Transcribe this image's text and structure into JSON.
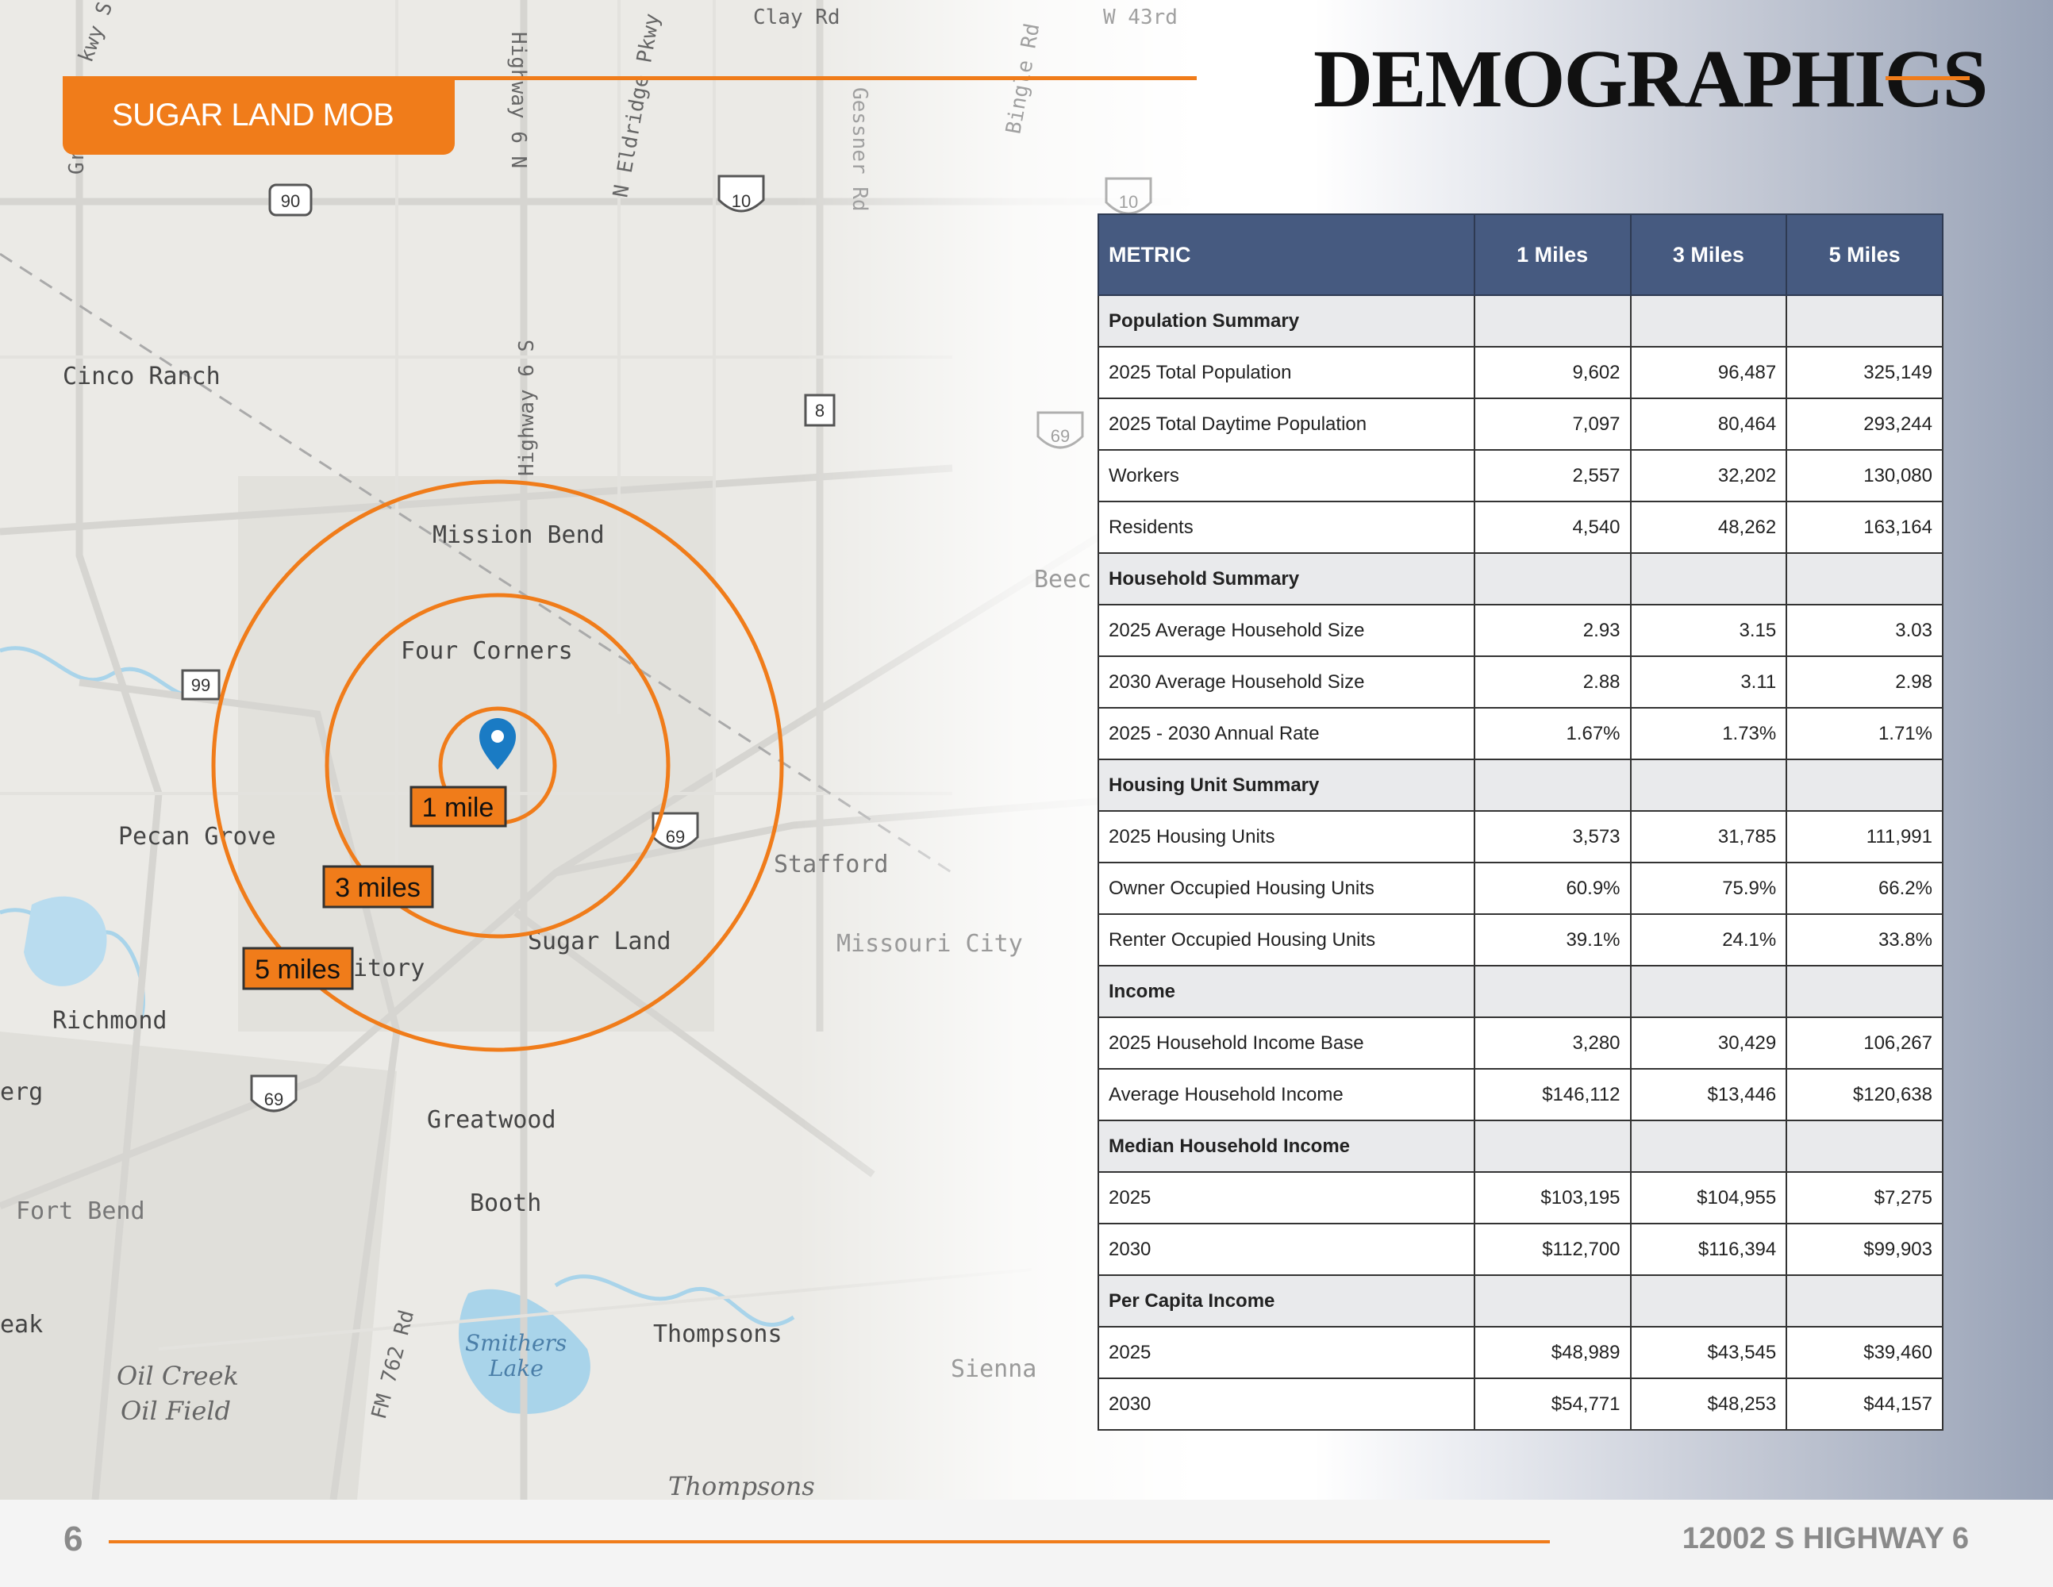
{
  "header": {
    "badge": "SUGAR LAND MOB",
    "title": "DEMOGRAPHICS"
  },
  "map": {
    "places": [
      "Cinco Ranch",
      "Mission Bend",
      "Four Corners",
      "Pecan Grove",
      "Stafford",
      "Missouri City",
      "Sugar Land",
      "Richmond",
      "Greatwood",
      "Fort Bend",
      "Booth",
      "Thompsons",
      "Sienna",
      "Oil Creek",
      "Oil Field",
      "Smithers",
      "Lake",
      "Thompsons",
      "itory",
      "erg",
      "eak",
      "Beec"
    ],
    "roads": [
      "Clay Rd",
      "Highway 6 N",
      "N Eldridge Pkwy",
      "Gessner Rd",
      "Highway 6 S",
      "FM 762 Rd",
      "W 43rd",
      "Bingle Rd",
      "kwy S",
      "Gr"
    ],
    "shields": [
      "90",
      "10",
      "8",
      "99",
      "69",
      "69",
      "69",
      "10"
    ],
    "radius_labels": [
      "1 mile",
      "3 miles",
      "5 miles"
    ],
    "accent": "#f07c1a"
  },
  "table": {
    "headers": [
      "METRIC",
      "1 Miles",
      "3 Miles",
      "5 Miles"
    ],
    "rows": [
      {
        "section": true,
        "label": "Population Summary"
      },
      {
        "label": "2025 Total Population",
        "v": [
          "9,602",
          "96,487",
          "325,149"
        ]
      },
      {
        "label": "2025 Total Daytime Population",
        "v": [
          "7,097",
          "80,464",
          "293,244"
        ]
      },
      {
        "label": "Workers",
        "v": [
          "2,557",
          "32,202",
          "130,080"
        ]
      },
      {
        "label": "Residents",
        "v": [
          "4,540",
          "48,262",
          "163,164"
        ]
      },
      {
        "section": true,
        "label": "Household Summary"
      },
      {
        "label": "2025 Average Household Size",
        "v": [
          "2.93",
          "3.15",
          "3.03"
        ]
      },
      {
        "label": "2030 Average Household Size",
        "v": [
          "2.88",
          "3.11",
          "2.98"
        ]
      },
      {
        "label": "2025 - 2030 Annual Rate",
        "v": [
          "1.67%",
          "1.73%",
          "1.71%"
        ]
      },
      {
        "section": true,
        "label": "Housing Unit Summary"
      },
      {
        "label": "2025 Housing Units",
        "v": [
          "3,573",
          "31,785",
          "111,991"
        ]
      },
      {
        "label": "Owner Occupied Housing Units",
        "v": [
          "60.9%",
          "75.9%",
          "66.2%"
        ]
      },
      {
        "label": "Renter Occupied Housing Units",
        "v": [
          "39.1%",
          "24.1%",
          "33.8%"
        ]
      },
      {
        "section": true,
        "label": "Income"
      },
      {
        "label": "2025 Household Income Base",
        "v": [
          "3,280",
          "30,429",
          "106,267"
        ]
      },
      {
        "label": "Average Household Income",
        "v": [
          "$146,112",
          "$13,446",
          "$120,638"
        ]
      },
      {
        "section": true,
        "label": "Median Household Income"
      },
      {
        "label": "2025",
        "v": [
          "$103,195",
          "$104,955",
          "$7,275"
        ]
      },
      {
        "label": "2030",
        "v": [
          "$112,700",
          "$116,394",
          "$99,903"
        ]
      },
      {
        "section": true,
        "label": "Per Capita Income"
      },
      {
        "label": "2025",
        "v": [
          "$48,989",
          "$43,545",
          "$39,460"
        ]
      },
      {
        "label": "2030",
        "v": [
          "$54,771",
          "$48,253",
          "$44,157"
        ]
      }
    ]
  },
  "footer": {
    "page": "6",
    "address": "12002 S HIGHWAY 6"
  }
}
